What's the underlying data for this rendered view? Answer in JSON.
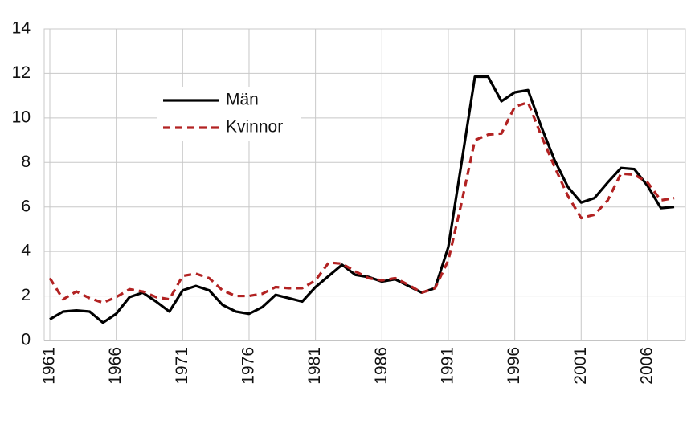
{
  "chart_data": {
    "type": "line",
    "x": [
      1961,
      1962,
      1963,
      1964,
      1965,
      1966,
      1967,
      1968,
      1969,
      1970,
      1971,
      1972,
      1973,
      1974,
      1975,
      1976,
      1977,
      1978,
      1979,
      1980,
      1981,
      1982,
      1983,
      1984,
      1985,
      1986,
      1987,
      1988,
      1989,
      1990,
      1991,
      1992,
      1993,
      1994,
      1995,
      1996,
      1997,
      1998,
      1999,
      2000,
      2001,
      2002,
      2003,
      2004,
      2005,
      2006,
      2007,
      2008
    ],
    "series": [
      {
        "name": "Män",
        "color": "#000000",
        "dashed": false,
        "values": [
          0.95,
          1.3,
          1.35,
          1.3,
          0.8,
          1.2,
          1.95,
          2.15,
          1.75,
          1.3,
          2.25,
          2.45,
          2.25,
          1.6,
          1.3,
          1.2,
          1.5,
          2.05,
          1.9,
          1.75,
          2.4,
          2.9,
          3.4,
          2.95,
          2.85,
          2.65,
          2.75,
          2.45,
          2.15,
          2.35,
          4.2,
          8.0,
          11.85,
          11.85,
          10.75,
          11.15,
          11.25,
          9.6,
          8.1,
          6.9,
          6.2,
          6.4,
          7.1,
          7.75,
          7.7,
          6.95,
          5.95,
          6.0
        ]
      },
      {
        "name": "Kvinnor",
        "color": "#b22222",
        "dashed": true,
        "values": [
          2.8,
          1.85,
          2.2,
          1.9,
          1.7,
          1.95,
          2.3,
          2.2,
          1.95,
          1.85,
          2.9,
          3.0,
          2.8,
          2.25,
          2.0,
          2.0,
          2.1,
          2.4,
          2.35,
          2.35,
          2.7,
          3.5,
          3.45,
          3.1,
          2.8,
          2.7,
          2.8,
          2.5,
          2.15,
          2.35,
          3.6,
          6.2,
          9.0,
          9.25,
          9.3,
          10.5,
          10.7,
          9.2,
          7.8,
          6.5,
          5.5,
          5.65,
          6.3,
          7.5,
          7.45,
          7.1,
          6.3,
          6.4
        ]
      }
    ],
    "xlim": [
      1961,
      2008
    ],
    "xticks": [
      1961,
      1966,
      1971,
      1976,
      1981,
      1986,
      1991,
      1996,
      2001,
      2006
    ],
    "ylim": [
      0,
      14
    ],
    "yticks": [
      0,
      2,
      4,
      6,
      8,
      10,
      12,
      14
    ],
    "grid": true,
    "legend": "upper left"
  }
}
